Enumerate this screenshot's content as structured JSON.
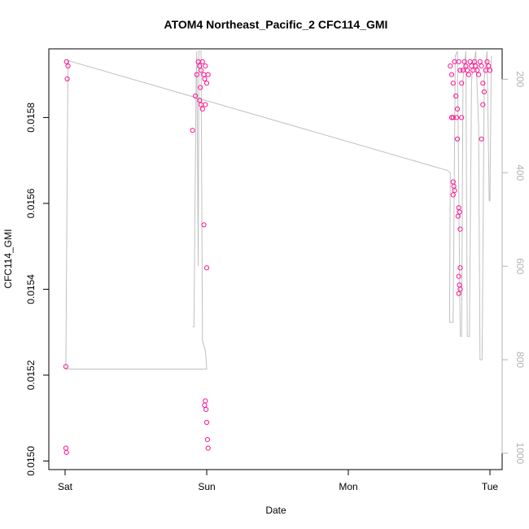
{
  "chart_data": {
    "type": "scatter",
    "title": "ATOM4 Northeast_Pacific_2 CFC114_GMI",
    "xlabel": "Date",
    "ylabel": "CFC114_GMI",
    "x_ticks": [
      "Sat",
      "Sun",
      "Mon",
      "Tue"
    ],
    "x_range_days": [
      -0.02,
      3.08
    ],
    "y_ticks": [
      "0.0150",
      "0.0152",
      "0.0154",
      "0.0156",
      "0.0158"
    ],
    "ylim": [
      0.01498,
      0.01596
    ],
    "y2_ticks": [
      "200",
      "400",
      "600",
      "800",
      "1000"
    ],
    "y2lim": [
      1035,
      135
    ],
    "grid": false,
    "point_color": "#ff1493",
    "line_color": "#c0c0c0",
    "series": [
      {
        "points": [
          {
            "x": 0.01,
            "y": 0.01593
          },
          {
            "x": 0.02,
            "y": 0.01592
          },
          {
            "x": 0.015,
            "y": 0.01589
          },
          {
            "x": 0.005,
            "y": 0.01522
          },
          {
            "x": 0.005,
            "y": 0.01503
          },
          {
            "x": 0.01,
            "y": 0.01502
          },
          {
            "x": 0.9,
            "y": 0.01577
          },
          {
            "x": 0.92,
            "y": 0.01585
          },
          {
            "x": 0.93,
            "y": 0.0159
          },
          {
            "x": 0.94,
            "y": 0.01593
          },
          {
            "x": 0.95,
            "y": 0.01592
          },
          {
            "x": 0.96,
            "y": 0.01591
          },
          {
            "x": 0.97,
            "y": 0.01593
          },
          {
            "x": 0.98,
            "y": 0.0159
          },
          {
            "x": 0.99,
            "y": 0.01592
          },
          {
            "x": 0.95,
            "y": 0.01584
          },
          {
            "x": 0.96,
            "y": 0.01583
          },
          {
            "x": 0.97,
            "y": 0.01582
          },
          {
            "x": 0.99,
            "y": 0.01583
          },
          {
            "x": 1.0,
            "y": 0.01588
          },
          {
            "x": 1.01,
            "y": 0.0159
          },
          {
            "x": 0.955,
            "y": 0.01587
          },
          {
            "x": 0.985,
            "y": 0.01589
          },
          {
            "x": 0.98,
            "y": 0.01555
          },
          {
            "x": 1.0,
            "y": 0.01545
          },
          {
            "x": 0.985,
            "y": 0.01513
          },
          {
            "x": 0.99,
            "y": 0.01514
          },
          {
            "x": 0.995,
            "y": 0.01512
          },
          {
            "x": 1.0,
            "y": 0.01509
          },
          {
            "x": 1.005,
            "y": 0.01505
          },
          {
            "x": 1.01,
            "y": 0.01503
          },
          {
            "x": 2.72,
            "y": 0.01592
          },
          {
            "x": 2.73,
            "y": 0.0159
          },
          {
            "x": 2.74,
            "y": 0.01588
          },
          {
            "x": 2.75,
            "y": 0.01593
          },
          {
            "x": 2.76,
            "y": 0.01585
          },
          {
            "x": 2.765,
            "y": 0.0158
          },
          {
            "x": 2.78,
            "y": 0.01593
          },
          {
            "x": 2.79,
            "y": 0.01591
          },
          {
            "x": 2.8,
            "y": 0.01588
          },
          {
            "x": 2.81,
            "y": 0.01591
          },
          {
            "x": 2.82,
            "y": 0.01593
          },
          {
            "x": 2.83,
            "y": 0.01592
          },
          {
            "x": 2.84,
            "y": 0.01591
          },
          {
            "x": 2.85,
            "y": 0.0159
          },
          {
            "x": 2.86,
            "y": 0.01593
          },
          {
            "x": 2.87,
            "y": 0.01592
          },
          {
            "x": 2.88,
            "y": 0.01591
          },
          {
            "x": 2.89,
            "y": 0.01593
          },
          {
            "x": 2.9,
            "y": 0.01592
          },
          {
            "x": 2.91,
            "y": 0.01591
          },
          {
            "x": 2.92,
            "y": 0.0159
          },
          {
            "x": 2.93,
            "y": 0.01593
          },
          {
            "x": 2.94,
            "y": 0.01592
          },
          {
            "x": 2.95,
            "y": 0.01588
          },
          {
            "x": 2.96,
            "y": 0.01586
          },
          {
            "x": 2.97,
            "y": 0.01591
          },
          {
            "x": 2.98,
            "y": 0.01593
          },
          {
            "x": 2.99,
            "y": 0.01592
          },
          {
            "x": 3.0,
            "y": 0.01591
          },
          {
            "x": 2.73,
            "y": 0.0158
          },
          {
            "x": 2.74,
            "y": 0.0158
          },
          {
            "x": 2.77,
            "y": 0.01582
          },
          {
            "x": 2.8,
            "y": 0.0158
          },
          {
            "x": 2.95,
            "y": 0.01583
          },
          {
            "x": 2.77,
            "y": 0.01575
          },
          {
            "x": 2.94,
            "y": 0.01575
          },
          {
            "x": 2.74,
            "y": 0.01565
          },
          {
            "x": 2.745,
            "y": 0.01564
          },
          {
            "x": 2.75,
            "y": 0.01563
          },
          {
            "x": 2.74,
            "y": 0.01562
          },
          {
            "x": 2.78,
            "y": 0.01559
          },
          {
            "x": 2.785,
            "y": 0.01558
          },
          {
            "x": 2.775,
            "y": 0.01557
          },
          {
            "x": 2.79,
            "y": 0.01554
          },
          {
            "x": 2.79,
            "y": 0.01545
          },
          {
            "x": 2.78,
            "y": 0.01543
          },
          {
            "x": 2.785,
            "y": 0.01541
          },
          {
            "x": 2.79,
            "y": 0.0154
          },
          {
            "x": 2.78,
            "y": 0.01539
          }
        ]
      }
    ],
    "depth_line": [
      {
        "x": 0.0,
        "d": 820
      },
      {
        "x": 0.005,
        "d": 820
      },
      {
        "x": 0.02,
        "d": 160
      },
      {
        "x": 2.7,
        "d": 395
      },
      {
        "x": 2.72,
        "d": 400
      },
      {
        "x": 2.715,
        "d": 720
      },
      {
        "x": 2.74,
        "d": 720
      },
      {
        "x": 2.755,
        "d": 150
      },
      {
        "x": 2.77,
        "d": 140
      },
      {
        "x": 2.79,
        "d": 750
      },
      {
        "x": 2.8,
        "d": 750
      },
      {
        "x": 2.81,
        "d": 200
      },
      {
        "x": 2.83,
        "d": 140
      },
      {
        "x": 2.84,
        "d": 750
      },
      {
        "x": 2.855,
        "d": 750
      },
      {
        "x": 2.87,
        "d": 200
      },
      {
        "x": 2.9,
        "d": 140
      },
      {
        "x": 2.92,
        "d": 300
      },
      {
        "x": 2.93,
        "d": 800
      },
      {
        "x": 2.945,
        "d": 800
      },
      {
        "x": 2.96,
        "d": 200
      },
      {
        "x": 2.98,
        "d": 140
      },
      {
        "x": 2.995,
        "d": 460
      },
      {
        "x": 3.0,
        "d": 460
      },
      {
        "x": 3.01,
        "d": 150
      }
    ],
    "depth_line_sun": [
      {
        "x": 0.9,
        "d": 730
      },
      {
        "x": 0.91,
        "d": 730
      },
      {
        "x": 0.925,
        "d": 200
      },
      {
        "x": 0.93,
        "d": 140
      },
      {
        "x": 0.94,
        "d": 600
      },
      {
        "x": 0.945,
        "d": 140
      },
      {
        "x": 0.96,
        "d": 140
      },
      {
        "x": 0.97,
        "d": 760
      },
      {
        "x": 0.99,
        "d": 780
      },
      {
        "x": 1.0,
        "d": 820
      },
      {
        "x": 0.0,
        "d": 820
      }
    ]
  }
}
